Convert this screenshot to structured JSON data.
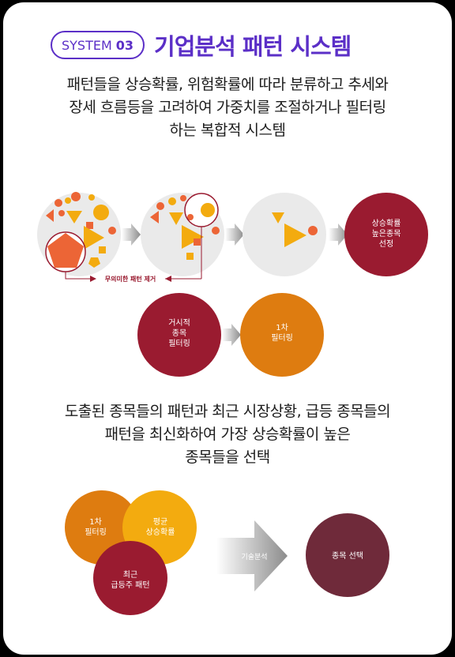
{
  "header": {
    "badge_prefix": "SYSTEM",
    "badge_number": "03",
    "title": "기업분석 패턴 시스템"
  },
  "intro_lines": [
    "패턴들을 상승확률, 위험확률에 따라 분류하고 추세와",
    "장세 흐름등을 고려하여 가중치를 조절하거나 필터링",
    "하는 복합적 시스템"
  ],
  "flow1": {
    "pattern_removal_label": "무의미한 패턴 제거",
    "result_lines": [
      "상승확률",
      "높은종목",
      "선정"
    ]
  },
  "flow2": {
    "source_lines": [
      "거시적",
      "종목",
      "필터링"
    ],
    "target_lines": [
      "1차",
      "필터링"
    ]
  },
  "outro_lines": [
    "도출된 종목들의 패턴과 최근 시장상황, 급등 종목들의",
    "패턴을 최신화하여 가장 상승확률이 높은",
    "종목들을 선택"
  ],
  "flow3": {
    "circle_a_lines": [
      "1차",
      "필터링"
    ],
    "circle_b_lines": [
      "평균",
      "상승확률"
    ],
    "circle_c_lines": [
      "최근",
      "급등주 패턴"
    ],
    "arrow_label": "기술분석",
    "result_label": "종목 선택"
  },
  "colors": {
    "accent_purple": "#5b2fc7",
    "crimson": "#9a1b30",
    "orange": "#de7c10",
    "orange_red": "#ec6536",
    "yellow": "#f3ab0f",
    "wine": "#6f2a3a",
    "pale_gray": "#eaeaea",
    "arrow_gray": "#9a9a9a"
  }
}
